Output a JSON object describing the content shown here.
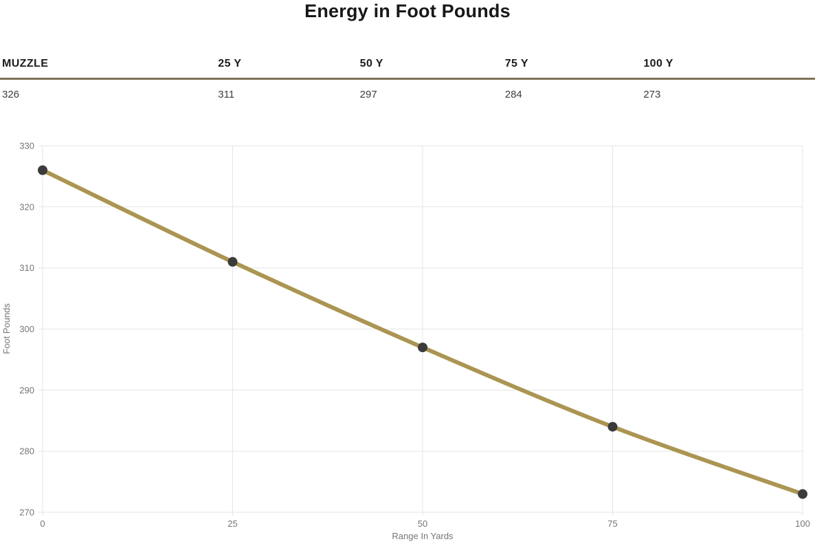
{
  "page": {
    "title": "Energy in Foot Pounds"
  },
  "table": {
    "headers": [
      "MUZZLE",
      "25 Y",
      "50 Y",
      "75 Y",
      "100 Y"
    ],
    "values": [
      "326",
      "311",
      "297",
      "284",
      "273"
    ],
    "divider_color": "#7c7256"
  },
  "chart_data": {
    "type": "line",
    "title": "",
    "x": [
      0,
      25,
      50,
      75,
      100
    ],
    "values": [
      326,
      311,
      297,
      284,
      273
    ],
    "xlabel": "Range In Yards",
    "ylabel": "Foot Pounds",
    "xlim": [
      0,
      100
    ],
    "ylim": [
      270,
      330
    ],
    "x_ticks": [
      0,
      25,
      50,
      75,
      100
    ],
    "y_ticks": [
      270,
      280,
      290,
      300,
      310,
      320,
      330
    ],
    "grid": true,
    "legend": "none",
    "line_color": "#ab9552",
    "point_color": "#3b3b3b",
    "grid_color": "#e6e6e6",
    "tick_color": "#757575",
    "line_width": 6,
    "point_radius": 7
  }
}
